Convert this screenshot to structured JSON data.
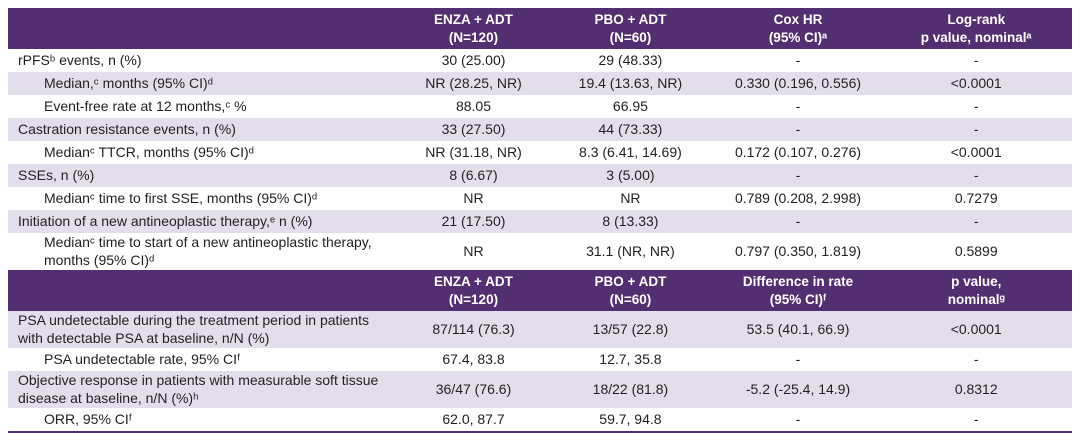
{
  "colors": {
    "header_bg": "#532E70",
    "stripe_bg": "#E3DEEC",
    "header_text": "#FFFFFF",
    "text": "#231F20"
  },
  "section1": {
    "columns": [
      [
        "",
        ""
      ],
      [
        "ENZA + ADT",
        "(N=120)"
      ],
      [
        "PBO + ADT",
        "(N=60)"
      ],
      [
        "Cox HR",
        "(95% CI)ᵃ"
      ],
      [
        "Log-rank",
        "p value, nominalᵃ"
      ]
    ],
    "rows": [
      {
        "label": "rPFSᵇ events, n (%)",
        "cells": [
          "30 (25.00)",
          "29 (48.33)",
          "-",
          "-"
        ]
      },
      {
        "label": "Median,ᶜ months (95% CI)ᵈ",
        "cells": [
          "NR (28.25, NR)",
          "19.4 (13.63, NR)",
          "0.330 (0.196, 0.556)",
          "<0.0001"
        ]
      },
      {
        "label": "Event-free rate at 12 months,ᶜ %",
        "cells": [
          "88.05",
          "66.95",
          "-",
          "-"
        ]
      },
      {
        "label": "Castration resistance events, n (%)",
        "cells": [
          "33 (27.50)",
          "44 (73.33)",
          "-",
          "-"
        ]
      },
      {
        "label": "Medianᶜ TTCR, months (95% CI)ᵈ",
        "cells": [
          "NR (31.18, NR)",
          "8.3 (6.41, 14.69)",
          "0.172 (0.107, 0.276)",
          "<0.0001"
        ]
      },
      {
        "label": "SSEs, n (%)",
        "cells": [
          "8 (6.67)",
          "3 (5.00)",
          "-",
          "-"
        ]
      },
      {
        "label": "Medianᶜ time to first SSE, months (95% CI)ᵈ",
        "cells": [
          "NR",
          "NR",
          "0.789 (0.208, 2.998)",
          "0.7279"
        ]
      },
      {
        "label": "Initiation of a new antineoplastic therapy,ᵉ n (%)",
        "cells": [
          "21 (17.50)",
          "8 (13.33)",
          "-",
          "-"
        ]
      },
      {
        "label": "Medianᶜ time to start of a new antineoplastic therapy, months (95% CI)ᵈ",
        "cells": [
          "NR",
          "31.1 (NR, NR)",
          "0.797 (0.350, 1.819)",
          "0.5899"
        ]
      }
    ]
  },
  "section2": {
    "columns": [
      [
        "",
        ""
      ],
      [
        "ENZA + ADT",
        "(N=120)"
      ],
      [
        "PBO + ADT",
        "(N=60)"
      ],
      [
        "Difference in rate",
        "(95% CI)ᶠ"
      ],
      [
        "p value,",
        "nominalᵍ"
      ]
    ],
    "rows": [
      {
        "label": "PSA undetectable during the treatment period in patients with detectable PSA at baseline, n/N (%)",
        "cells": [
          "87/114 (76.3)",
          "13/57 (22.8)",
          "53.5 (40.1, 66.9)",
          "<0.0001"
        ]
      },
      {
        "label": "PSA undetectable rate, 95% CIᶠ",
        "cells": [
          "67.4, 83.8",
          "12.7, 35.8",
          "-",
          "-"
        ]
      },
      {
        "label": "Objective response in patients with measurable soft tissue disease at baseline, n/N (%)ʰ",
        "cells": [
          "36/47 (76.6)",
          "18/22 (81.8)",
          "-5.2 (-25.4, 14.9)",
          "0.8312"
        ]
      },
      {
        "label": "ORR, 95% CIᶠ",
        "cells": [
          "62.0, 87.7",
          "59.7, 94.8",
          "-",
          "-"
        ]
      }
    ]
  }
}
